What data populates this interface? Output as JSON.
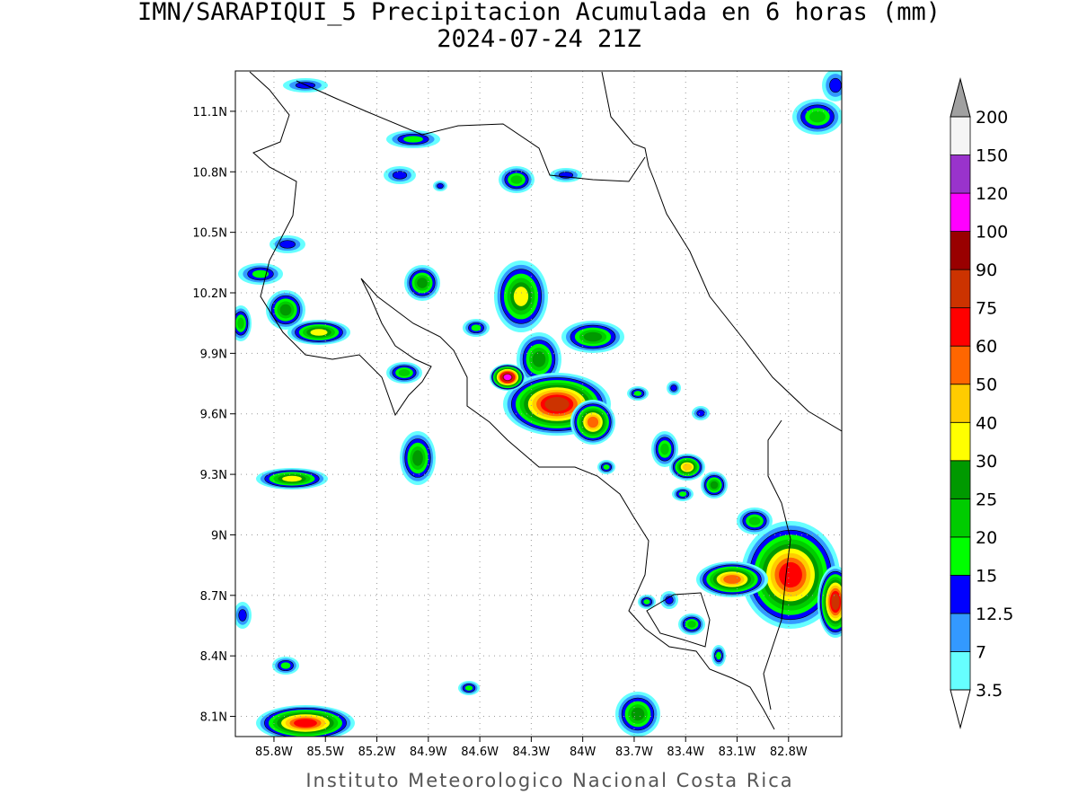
{
  "title": "IMN/SARAPIQUI_5 Precipitacion Acumulada en 6 horas (mm)",
  "subtitle": "2024-07-24 21Z",
  "footer": "Instituto Meteorologico Nacional Costa Rica",
  "map": {
    "xlim": [
      -86.025,
      -82.49
    ],
    "ylim": [
      8.0,
      11.3
    ],
    "grid": true,
    "xticks": [
      {
        "value": -85.8,
        "label": "85.8W"
      },
      {
        "value": -85.5,
        "label": "85.5W"
      },
      {
        "value": -85.2,
        "label": "85.2W"
      },
      {
        "value": -84.9,
        "label": "84.9W"
      },
      {
        "value": -84.6,
        "label": "84.6W"
      },
      {
        "value": -84.3,
        "label": "84.3W"
      },
      {
        "value": -84,
        "label": "84W"
      },
      {
        "value": -83.7,
        "label": "83.7W"
      },
      {
        "value": -83.4,
        "label": "83.4W"
      },
      {
        "value": -83.1,
        "label": "83.1W"
      },
      {
        "value": -82.8,
        "label": "82.8W"
      }
    ],
    "yticks": [
      {
        "value": 8.1,
        "label": "8.1N"
      },
      {
        "value": 8.4,
        "label": "8.4N"
      },
      {
        "value": 8.7,
        "label": "8.7N"
      },
      {
        "value": 9,
        "label": "9N"
      },
      {
        "value": 9.3,
        "label": "9.3N"
      },
      {
        "value": 9.6,
        "label": "9.6N"
      },
      {
        "value": 9.9,
        "label": "9.9N"
      },
      {
        "value": 10.2,
        "label": "10.2N"
      },
      {
        "value": 10.5,
        "label": "10.5N"
      },
      {
        "value": 10.8,
        "label": "10.8N"
      },
      {
        "value": 11.1,
        "label": "11.1N"
      }
    ]
  },
  "legend": {
    "levels": [
      3.5,
      7,
      12.5,
      15,
      20,
      25,
      30,
      40,
      50,
      60,
      75,
      90,
      100,
      120,
      150,
      200
    ],
    "colors": [
      "#66ffff",
      "#3399ff",
      "#0000ff",
      "#00ff00",
      "#00cc00",
      "#009900",
      "#ffff00",
      "#ffcc00",
      "#ff6600",
      "#ff0000",
      "#cc3300",
      "#990000",
      "#ff00ff",
      "#9933cc",
      "#f5f5f5"
    ],
    "over_color": "#a0a0a0",
    "under_color": "#ffffff"
  }
}
